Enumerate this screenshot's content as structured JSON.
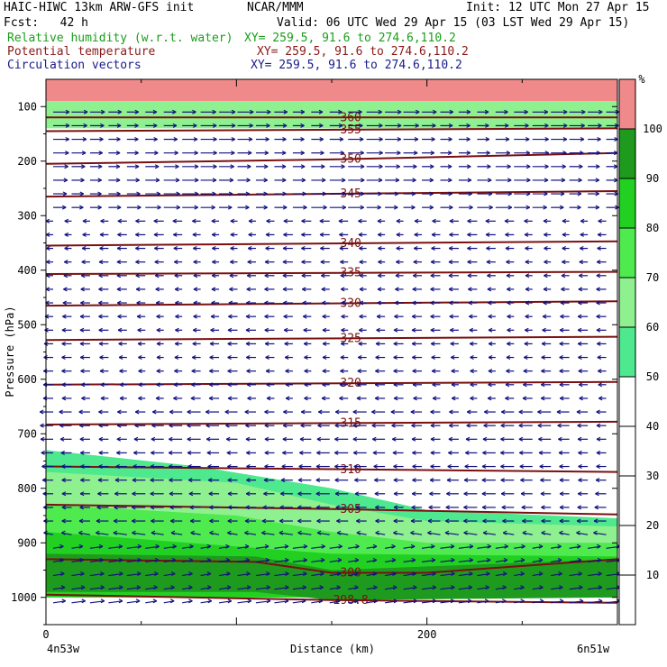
{
  "header": {
    "title": "HAIC-HIWC 13km ARW-GFS init",
    "org": "NCAR/MMM",
    "init": "Init: 12 UTC Mon 27 Apr 15",
    "fcst": "Fcst:   42 h",
    "valid": "Valid: 06 UTC Wed 29 Apr 15 (03 LST Wed 29 Apr 15)",
    "fields": [
      {
        "name": "Relative humidity (w.r.t. water)",
        "xy": "XY= 259.5, 91.6 to 274.6,110.2",
        "color": "#1a9e1a"
      },
      {
        "name": "Potential temperature",
        "xy": "XY= 259.5, 91.6 to 274.6,110.2",
        "color": "#8b1a1a"
      },
      {
        "name": "Circulation vectors",
        "xy": "XY= 259.5, 91.6 to 274.6,110.2",
        "color": "#1a1a8b"
      }
    ]
  },
  "axes": {
    "ylabel": "Pressure (hPa)",
    "xlabel": "Distance (km)",
    "left_location": "4n53w",
    "right_location": "6n51w"
  },
  "colorbar": {
    "unit": "%",
    "levels": [
      10,
      20,
      30,
      40,
      50,
      60,
      70,
      80,
      90,
      100
    ],
    "bands": [
      {
        "from": 50,
        "to": 60,
        "color": "#4ee88e"
      },
      {
        "from": 60,
        "to": 70,
        "color": "#8ef08e"
      },
      {
        "from": 70,
        "to": 80,
        "color": "#4eea4e"
      },
      {
        "from": 80,
        "to": 90,
        "color": "#22d022"
      },
      {
        "from": 90,
        "to": 100,
        "color": "#1e9a1e"
      },
      {
        "from": 100,
        "to": 110,
        "color": "#f08a8a"
      }
    ]
  },
  "chart_data": {
    "type": "heatmap",
    "xlim": [
      0,
      300
    ],
    "ylim": [
      1050,
      50
    ],
    "x_ticks": [
      0,
      200
    ],
    "y_ticks": [
      100,
      200,
      300,
      400,
      500,
      600,
      700,
      800,
      900,
      1000
    ],
    "theta_contours": [
      {
        "label": "360",
        "x": [
          0,
          300
        ],
        "y": [
          120,
          120
        ]
      },
      {
        "label": "355",
        "x": [
          0,
          300
        ],
        "y": [
          145,
          140
        ]
      },
      {
        "label": "350",
        "x": [
          0,
          150,
          300
        ],
        "y": [
          205,
          197,
          185
        ]
      },
      {
        "label": "345",
        "x": [
          0,
          300
        ],
        "y": [
          265,
          255
        ]
      },
      {
        "label": "340",
        "x": [
          0,
          300
        ],
        "y": [
          355,
          347
        ]
      },
      {
        "label": "335",
        "x": [
          0,
          300
        ],
        "y": [
          407,
          403
        ]
      },
      {
        "label": "330",
        "x": [
          0,
          300
        ],
        "y": [
          465,
          457
        ]
      },
      {
        "label": "325",
        "x": [
          0,
          300
        ],
        "y": [
          528,
          522
        ]
      },
      {
        "label": "320",
        "x": [
          0,
          300
        ],
        "y": [
          610,
          605
        ]
      },
      {
        "label": "315",
        "x": [
          0,
          300
        ],
        "y": [
          683,
          678
        ]
      },
      {
        "label": "310",
        "x": [
          0,
          300
        ],
        "y": [
          760,
          770
        ]
      },
      {
        "label": "305",
        "x": [
          0,
          150,
          300
        ],
        "y": [
          830,
          838,
          848
        ]
      },
      {
        "label": "300",
        "x": [
          0,
          110,
          150,
          200,
          300
        ],
        "y": [
          930,
          935,
          955,
          955,
          930
        ]
      },
      {
        "label": "298.8",
        "x": [
          0,
          150,
          300
        ],
        "y": [
          995,
          1005,
          1010
        ]
      }
    ],
    "rh_regions": [
      {
        "level": 100,
        "x": [
          0,
          300
        ],
        "top": [
          50,
          50
        ],
        "bottom": [
          90,
          90
        ]
      },
      {
        "level": 60,
        "x": [
          0,
          300
        ],
        "top": [
          90,
          90
        ],
        "bottom": [
          140,
          140
        ]
      },
      {
        "level": 50,
        "x": [
          0,
          80,
          150,
          200,
          300
        ],
        "top": [
          730,
          760,
          800,
          840,
          855
        ],
        "bottom": [
          1000,
          1000,
          1000,
          1000,
          1000
        ]
      },
      {
        "level": 60,
        "x": [
          0,
          100,
          150,
          200,
          300
        ],
        "top": [
          770,
          790,
          830,
          860,
          870
        ],
        "bottom": [
          1000,
          1000,
          1000,
          1000,
          1000
        ]
      },
      {
        "level": 70,
        "x": [
          0,
          100,
          150,
          200,
          300
        ],
        "top": [
          830,
          850,
          880,
          900,
          900
        ],
        "bottom": [
          1000,
          1000,
          1000,
          1000,
          1000
        ]
      },
      {
        "level": 80,
        "x": [
          0,
          150,
          300
        ],
        "top": [
          880,
          920,
          925
        ],
        "bottom": [
          1000,
          1000,
          1000
        ]
      },
      {
        "level": 90,
        "x": [
          0,
          110,
          150,
          300
        ],
        "top": [
          920,
          925,
          950,
          930
        ],
        "bottom": [
          990,
          990,
          1005,
          1000
        ]
      }
    ]
  }
}
